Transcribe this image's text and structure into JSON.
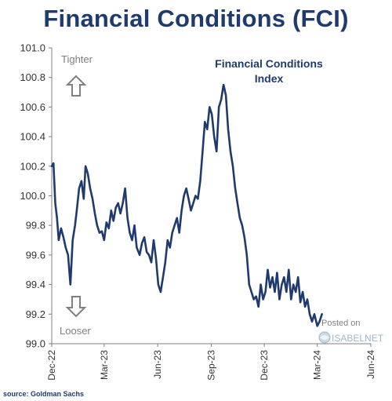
{
  "header": {
    "title": "Financial Conditions (FCI)"
  },
  "footer": {
    "source": "source: Goldman Sachs"
  },
  "chart_data": {
    "type": "line",
    "title": "Financial Conditions (FCI)",
    "xlabel": "",
    "ylabel": "",
    "ylim": [
      99.0,
      101.0
    ],
    "yticks": [
      "101.0",
      "100.8",
      "100.6",
      "100.4",
      "100.2",
      "100.0",
      "99.8",
      "99.6",
      "99.4",
      "99.2",
      "99.0"
    ],
    "ytick_values": [
      101.0,
      100.8,
      100.6,
      100.4,
      100.2,
      100.0,
      99.8,
      99.6,
      99.4,
      99.2,
      99.0
    ],
    "xticks": [
      "Dec-22",
      "Mar-23",
      "Jun-23",
      "Sep-23",
      "Dec-23",
      "Mar-24",
      "Jun-24"
    ],
    "xtick_dates": [
      "2022-12-01",
      "2023-03-01",
      "2023-06-01",
      "2023-09-01",
      "2023-12-01",
      "2024-03-01",
      "2024-06-01"
    ],
    "xlim": [
      "2022-12-01",
      "2024-06-01"
    ],
    "grid": false,
    "legend": false,
    "annotations": {
      "series_label_line1": "Financial Conditions",
      "series_label_line2": "Index",
      "tighter": "Tighter",
      "looser": "Looser",
      "watermark_line1": "Posted on",
      "watermark_line2": "ISABELNET"
    },
    "colors": {
      "line": "#1f3b6e",
      "text": "#1f3b6e",
      "axis": "#555555",
      "arrow": "#7f7f7f"
    },
    "series": [
      {
        "x": [
          "2022-12-01",
          "2022-12-04",
          "2022-12-07",
          "2022-12-10",
          "2022-12-13",
          "2022-12-17",
          "2022-12-21",
          "2022-12-25",
          "2022-12-29",
          "2023-01-02",
          "2023-01-06",
          "2023-01-10",
          "2023-01-13",
          "2023-01-17",
          "2023-01-21",
          "2023-01-25",
          "2023-01-28",
          "2023-02-01",
          "2023-02-05",
          "2023-02-09",
          "2023-02-13",
          "2023-02-17",
          "2023-02-21",
          "2023-02-25",
          "2023-03-01",
          "2023-03-05",
          "2023-03-09",
          "2023-03-13",
          "2023-03-17",
          "2023-03-21",
          "2023-03-25",
          "2023-03-29",
          "2023-04-02",
          "2023-04-06",
          "2023-04-10",
          "2023-04-14",
          "2023-04-18",
          "2023-04-22",
          "2023-04-26",
          "2023-05-01",
          "2023-05-05",
          "2023-05-09",
          "2023-05-13",
          "2023-05-17",
          "2023-05-21",
          "2023-05-25",
          "2023-05-29",
          "2023-06-02",
          "2023-06-06",
          "2023-06-10",
          "2023-06-14",
          "2023-06-18",
          "2023-06-22",
          "2023-06-26",
          "2023-06-30",
          "2023-07-04",
          "2023-07-08",
          "2023-07-12",
          "2023-07-16",
          "2023-07-20",
          "2023-07-24",
          "2023-07-28",
          "2023-08-01",
          "2023-08-05",
          "2023-08-09",
          "2023-08-13",
          "2023-08-17",
          "2023-08-21",
          "2023-08-25",
          "2023-08-29",
          "2023-09-02",
          "2023-09-06",
          "2023-09-10",
          "2023-09-14",
          "2023-09-18",
          "2023-09-22",
          "2023-09-26",
          "2023-09-30",
          "2023-10-04",
          "2023-10-08",
          "2023-10-12",
          "2023-10-16",
          "2023-10-20",
          "2023-10-24",
          "2023-10-28",
          "2023-11-01",
          "2023-11-05",
          "2023-11-09",
          "2023-11-13",
          "2023-11-17",
          "2023-11-21",
          "2023-11-25",
          "2023-11-29",
          "2023-12-03",
          "2023-12-07",
          "2023-12-11",
          "2023-12-15",
          "2023-12-19",
          "2023-12-23",
          "2023-12-27",
          "2023-12-31",
          "2024-01-04",
          "2024-01-08",
          "2024-01-12",
          "2024-01-16",
          "2024-01-20",
          "2024-01-24",
          "2024-01-28",
          "2024-02-01",
          "2024-02-05",
          "2024-02-09",
          "2024-02-13",
          "2024-02-17",
          "2024-02-21",
          "2024-02-25",
          "2024-03-01",
          "2024-03-05",
          "2024-03-09"
        ],
        "values": [
          100.2,
          100.22,
          99.95,
          99.85,
          99.7,
          99.78,
          99.72,
          99.65,
          99.6,
          99.4,
          99.7,
          99.8,
          99.9,
          100.05,
          100.1,
          99.98,
          100.2,
          100.15,
          100.05,
          99.98,
          99.88,
          99.8,
          99.75,
          99.76,
          99.7,
          99.82,
          99.78,
          99.9,
          99.83,
          99.92,
          99.95,
          99.88,
          99.95,
          100.05,
          99.85,
          99.75,
          99.7,
          99.8,
          99.65,
          99.6,
          99.68,
          99.72,
          99.62,
          99.6,
          99.55,
          99.7,
          99.58,
          99.4,
          99.35,
          99.45,
          99.55,
          99.7,
          99.65,
          99.75,
          99.8,
          99.85,
          99.75,
          99.9,
          100.0,
          100.05,
          99.98,
          99.9,
          99.95,
          100.0,
          99.98,
          100.1,
          100.3,
          100.5,
          100.45,
          100.6,
          100.55,
          100.4,
          100.3,
          100.6,
          100.65,
          100.75,
          100.68,
          100.45,
          100.3,
          100.2,
          100.05,
          99.95,
          99.85,
          99.8,
          99.72,
          99.6,
          99.4,
          99.35,
          99.3,
          99.32,
          99.25,
          99.4,
          99.3,
          99.35,
          99.5,
          99.38,
          99.45,
          99.35,
          99.48,
          99.3,
          99.4,
          99.45,
          99.35,
          99.5,
          99.3,
          99.4,
          99.35,
          99.45,
          99.28,
          99.35,
          99.25,
          99.3,
          99.2,
          99.15,
          99.2,
          99.12,
          99.15,
          99.2
        ]
      }
    ]
  }
}
